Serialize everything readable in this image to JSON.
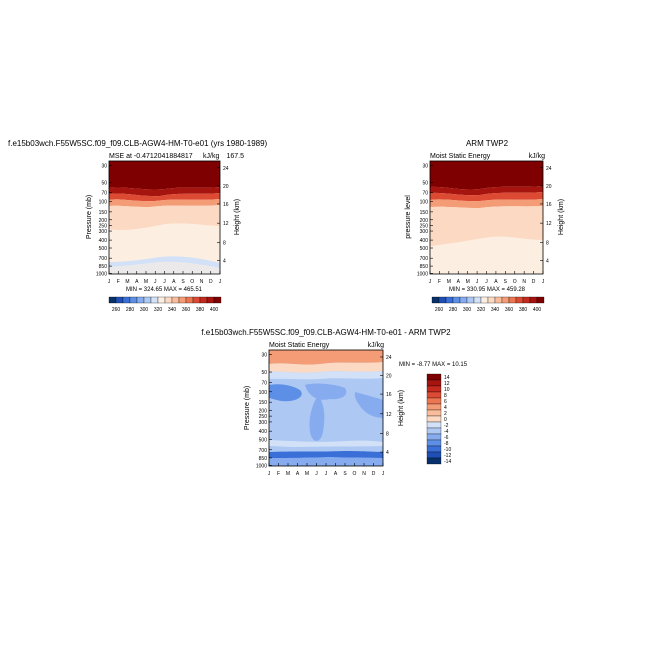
{
  "chart_data": [
    {
      "type": "heatmap",
      "panel_title": "f.e15b03wch.F55W5SC.f09_f09.CLB-AGW4-HM-T0-e01 (yrs 1980-1989)",
      "left_label": "MSE at -0.4712041884817",
      "right_label": "kJ/kg",
      "overlap_label": "167.5",
      "ylabel": "Pressure (mb)",
      "ylabel_right": "Height (km)",
      "stats": "MIN = 324.65 MAX = 465.51",
      "x_ticks": [
        "J",
        "F",
        "M",
        "A",
        "M",
        "J",
        "J",
        "A",
        "S",
        "O",
        "N",
        "D",
        "J"
      ],
      "y_ticks": [
        "30",
        "50",
        "70",
        "100",
        "150",
        "200",
        "250",
        "300",
        "400",
        "500",
        "700",
        "850",
        "1000"
      ],
      "y_ticks_right": [
        "24",
        "20",
        "16",
        "12",
        "8",
        "4"
      ],
      "colorbar_labels": [
        "260",
        "280",
        "300",
        "320",
        "340",
        "360",
        "380",
        "400"
      ]
    },
    {
      "type": "heatmap",
      "panel_title": "ARM TWP2",
      "left_label": "Moist Static Energy",
      "right_label": "kJ/kg",
      "ylabel": "pressure level",
      "ylabel_right": "Height (km)",
      "stats": "MIN = 330.95 MAX = 459.28",
      "x_ticks": [
        "J",
        "F",
        "M",
        "A",
        "M",
        "J",
        "J",
        "A",
        "S",
        "O",
        "N",
        "D",
        "J"
      ],
      "y_ticks": [
        "30",
        "50",
        "70",
        "100",
        "150",
        "200",
        "250",
        "300",
        "400",
        "500",
        "700",
        "850",
        "1000"
      ],
      "y_ticks_right": [
        "24",
        "20",
        "16",
        "12",
        "8",
        "4"
      ],
      "colorbar_labels": [
        "260",
        "280",
        "300",
        "320",
        "340",
        "360",
        "380",
        "400"
      ]
    },
    {
      "type": "heatmap",
      "panel_title": "f.e15b03wch.F55W5SC.f09_f09.CLB-AGW4-HM-T0-e01 - ARM TWP2",
      "left_label": "Moist Static Energy",
      "right_label": "kJ/kg",
      "ylabel": "Pressure (mb)",
      "ylabel_right": "Height (km)",
      "stats": "MIN = -8.77 MAX = 10.15",
      "x_ticks": [
        "J",
        "F",
        "M",
        "A",
        "M",
        "J",
        "J",
        "A",
        "S",
        "O",
        "N",
        "D",
        "J"
      ],
      "y_ticks": [
        "30",
        "50",
        "70",
        "100",
        "150",
        "200",
        "250",
        "300",
        "400",
        "500",
        "700",
        "850",
        "1000"
      ],
      "y_ticks_right": [
        "24",
        "20",
        "16",
        "12",
        "8",
        "4"
      ],
      "colorbar_labels": [
        "14",
        "12",
        "10",
        "8",
        "6",
        "4",
        "2",
        "0",
        "-2",
        "-4",
        "-6",
        "-8",
        "-10",
        "-12",
        "-14"
      ]
    }
  ],
  "colors": {
    "mse_scale": [
      "#08306b",
      "#1f4fb5",
      "#3a6fd8",
      "#5e8fe6",
      "#86acef",
      "#adc8f3",
      "#d2e1f7",
      "#fdeee2",
      "#fcd9c2",
      "#f9bd9c",
      "#f49c76",
      "#ec7552",
      "#dd4a33",
      "#c52a1e",
      "#a5140f",
      "#7f0000"
    ],
    "diff_scale": [
      "#7f0000",
      "#a5140f",
      "#c52a1e",
      "#dd4a33",
      "#ec7552",
      "#f49c76",
      "#f9bd9c",
      "#fcd9c2",
      "#d2e1f7",
      "#adc8f3",
      "#86acef",
      "#5e8fe6",
      "#3a6fd8",
      "#1f4fb5",
      "#08306b"
    ]
  }
}
